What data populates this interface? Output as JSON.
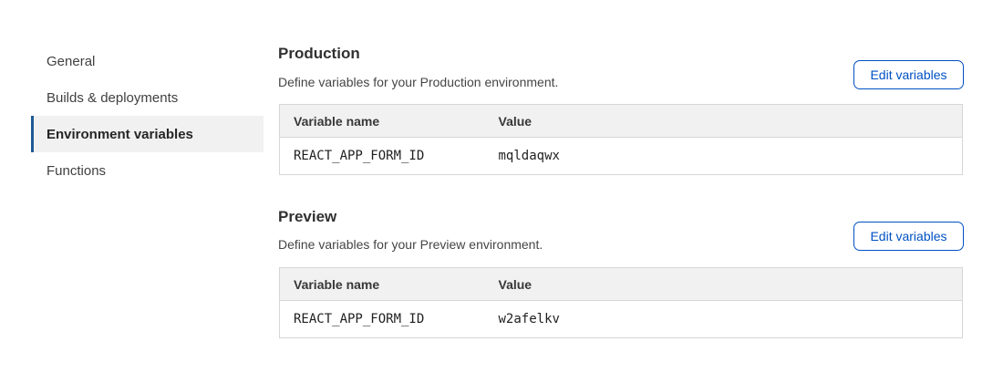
{
  "sidebar": {
    "items": [
      {
        "label": "General",
        "active": false
      },
      {
        "label": "Builds & deployments",
        "active": false
      },
      {
        "label": "Environment variables",
        "active": true
      },
      {
        "label": "Functions",
        "active": false
      }
    ]
  },
  "sections": [
    {
      "title": "Production",
      "description": "Define variables for your Production environment.",
      "button_label": "Edit variables",
      "table": {
        "headers": {
          "name": "Variable name",
          "value": "Value"
        },
        "rows": [
          {
            "name": "REACT_APP_FORM_ID",
            "value": "mqldaqwx"
          }
        ]
      }
    },
    {
      "title": "Preview",
      "description": "Define variables for your Preview environment.",
      "button_label": "Edit variables",
      "table": {
        "headers": {
          "name": "Variable name",
          "value": "Value"
        },
        "rows": [
          {
            "name": "REACT_APP_FORM_ID",
            "value": "w2afelkv"
          }
        ]
      }
    }
  ],
  "colors": {
    "accent_blue": "#0051c3",
    "nav_active_marker": "#1e5a96",
    "nav_active_bg": "#f1f1f1",
    "table_header_bg": "#f1f1f1",
    "table_border": "#d6d6d6"
  }
}
